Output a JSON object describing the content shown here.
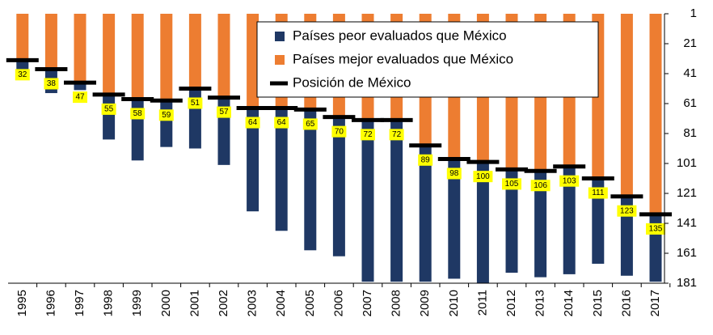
{
  "chart_data": {
    "type": "bar",
    "categories": [
      "1995",
      "1996",
      "1997",
      "1998",
      "1999",
      "2000",
      "2001",
      "2002",
      "2003",
      "2004",
      "2005",
      "2006",
      "2007",
      "2008",
      "2009",
      "2010",
      "2011",
      "2012",
      "2013",
      "2014",
      "2015",
      "2016",
      "2017"
    ],
    "series": [
      {
        "name": "Países peor evaluados que México",
        "color": "#1f3864",
        "values": [
          9,
          16,
          5,
          30,
          41,
          31,
          40,
          45,
          69,
          82,
          94,
          93,
          108,
          108,
          91,
          80,
          83,
          69,
          71,
          72,
          57,
          53,
          45
        ]
      },
      {
        "name": "Países mejor evaluados que México",
        "color": "#ed7d31",
        "values": [
          31,
          37,
          46,
          54,
          57,
          58,
          50,
          56,
          63,
          63,
          64,
          69,
          71,
          71,
          88,
          97,
          99,
          104,
          105,
          102,
          110,
          122,
          134
        ]
      },
      {
        "name": "Posición de México",
        "color": "#000000",
        "values": [
          32,
          38,
          47,
          55,
          58,
          59,
          51,
          57,
          64,
          64,
          65,
          70,
          72,
          72,
          89,
          98,
          100,
          105,
          106,
          103,
          111,
          123,
          135
        ]
      }
    ],
    "label_color": "#ffff00",
    "ylim": [
      181,
      1
    ],
    "yticks": [
      1,
      21,
      41,
      61,
      81,
      101,
      121,
      141,
      161,
      181
    ]
  }
}
